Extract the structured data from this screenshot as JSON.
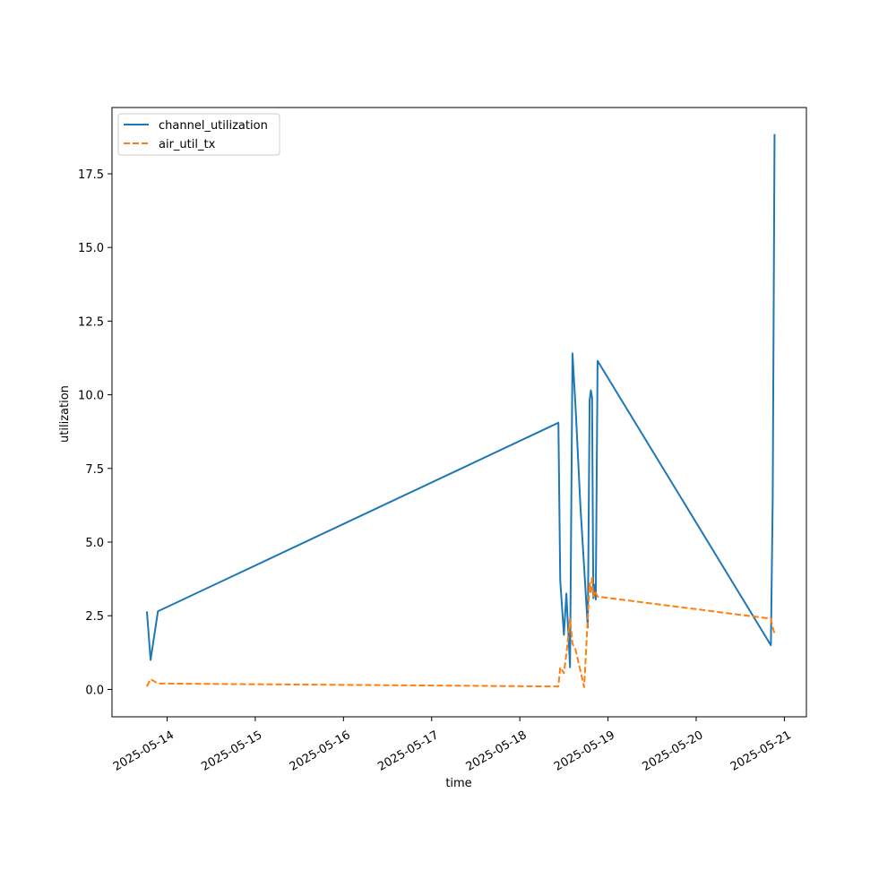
{
  "chart_data": {
    "type": "line",
    "title": "",
    "xlabel": "time",
    "ylabel": "utilization",
    "x_tick_labels": [
      "2025-05-14",
      "2025-05-15",
      "2025-05-16",
      "2025-05-17",
      "2025-05-18",
      "2025-05-19",
      "2025-05-20",
      "2025-05-21"
    ],
    "y_tick_labels": [
      "0.0",
      "2.5",
      "5.0",
      "7.5",
      "10.0",
      "12.5",
      "15.0",
      "17.5"
    ],
    "y_ticks": [
      0,
      2.5,
      5,
      7.5,
      10,
      12.5,
      15,
      17.5
    ],
    "xlim": [
      "2025-05-13 09:00",
      "2025-05-21 06:00"
    ],
    "ylim": [
      -0.93,
      19.75
    ],
    "grid": false,
    "legend": "top-left",
    "series": [
      {
        "name": "channel_utilization",
        "color": "#1f77b4",
        "style": "solid",
        "x": [
          "2025-05-13 18:30",
          "2025-05-13 19:30",
          "2025-05-13 21:30",
          "2025-05-18 10:30",
          "2025-05-18 11:00",
          "2025-05-18 12:00",
          "2025-05-18 12:40",
          "2025-05-18 13:40",
          "2025-05-18 14:20",
          "2025-05-18 15:10",
          "2025-05-18 16:30",
          "2025-05-18 18:30",
          "2025-05-18 19:00",
          "2025-05-18 19:20",
          "2025-05-18 19:40",
          "2025-05-18 20:00",
          "2025-05-18 20:20",
          "2025-05-18 20:40",
          "2025-05-18 21:10",
          "2025-05-20 20:20",
          "2025-05-20 20:50",
          "2025-05-20 21:20"
        ],
        "y": [
          2.65,
          1.0,
          2.65,
          9.05,
          3.7,
          1.85,
          3.25,
          0.75,
          11.4,
          9.6,
          6.2,
          2.1,
          9.8,
          10.15,
          9.9,
          3.1,
          3.55,
          3.05,
          11.15,
          1.5,
          6.5,
          18.85
        ]
      },
      {
        "name": "air_util_tx",
        "color": "#ff7f0e",
        "style": "dashed",
        "x": [
          "2025-05-13 18:30",
          "2025-05-13 19:30",
          "2025-05-13 21:30",
          "2025-05-18 10:30",
          "2025-05-18 11:00",
          "2025-05-18 12:00",
          "2025-05-18 12:40",
          "2025-05-18 13:40",
          "2025-05-18 14:20",
          "2025-05-18 15:10",
          "2025-05-18 17:30",
          "2025-05-18 19:00",
          "2025-05-18 19:20",
          "2025-05-18 19:40",
          "2025-05-18 20:00",
          "2025-05-18 20:20",
          "2025-05-18 21:10",
          "2025-05-20 20:20",
          "2025-05-20 20:50",
          "2025-05-20 21:20"
        ],
        "y": [
          0.1,
          0.35,
          0.2,
          0.1,
          0.75,
          0.55,
          1.2,
          2.4,
          1.55,
          1.35,
          0.08,
          3.6,
          3.3,
          3.85,
          3.15,
          3.35,
          3.15,
          2.4,
          2.1,
          1.9
        ]
      }
    ]
  }
}
